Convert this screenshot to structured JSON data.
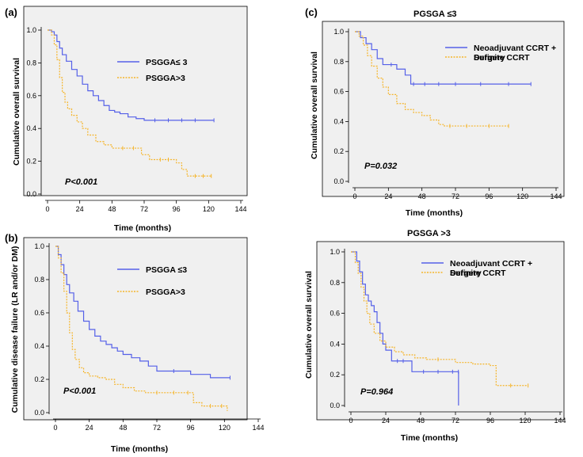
{
  "chart_data": [
    {
      "type": "line",
      "panel_label": "(a)",
      "title": "",
      "xlabel": "Time (months)",
      "ylabel": "Cumulative overall survival",
      "xlim": [
        0,
        144
      ],
      "ylim": [
        0,
        1
      ],
      "xticks": [
        "0",
        "24",
        "48",
        "72",
        "96",
        "120",
        "144"
      ],
      "yticks": [
        "0.0",
        "0.2",
        "0.4",
        "0.6",
        "0.8",
        "1.0"
      ],
      "annotation": "P<0.001",
      "legend_position": "top-right",
      "series": [
        {
          "name": "PSGGA≤ 3",
          "color": "#5560e8",
          "x": [
            0,
            3,
            5,
            7,
            9,
            11,
            14,
            18,
            22,
            26,
            30,
            34,
            38,
            42,
            46,
            50,
            54,
            60,
            66,
            72,
            80,
            90,
            100,
            110,
            124
          ],
          "y": [
            1.0,
            0.99,
            0.97,
            0.93,
            0.89,
            0.85,
            0.81,
            0.76,
            0.72,
            0.67,
            0.63,
            0.6,
            0.57,
            0.54,
            0.51,
            0.5,
            0.49,
            0.47,
            0.46,
            0.45,
            0.45,
            0.45,
            0.45,
            0.45,
            0.45
          ]
        },
        {
          "name": "PSGGA>3",
          "color": "#f5b52b",
          "x": [
            0,
            3,
            5,
            7,
            9,
            11,
            13,
            15,
            18,
            22,
            26,
            30,
            36,
            42,
            48,
            56,
            64,
            70,
            76,
            84,
            90,
            96,
            100,
            104,
            110,
            116,
            122
          ],
          "y": [
            1.0,
            0.97,
            0.91,
            0.82,
            0.71,
            0.62,
            0.56,
            0.52,
            0.48,
            0.44,
            0.4,
            0.36,
            0.32,
            0.3,
            0.28,
            0.28,
            0.28,
            0.24,
            0.21,
            0.21,
            0.21,
            0.19,
            0.15,
            0.11,
            0.11,
            0.11,
            0.11
          ]
        }
      ]
    },
    {
      "type": "line",
      "panel_label": "(b)",
      "title": "",
      "xlabel": "Time (months)",
      "ylabel": "Cumulative disease failure (LR and/or DM)",
      "xlim": [
        0,
        144
      ],
      "ylim": [
        0,
        1
      ],
      "xticks": [
        "0",
        "24",
        "48",
        "72",
        "96",
        "120",
        "144"
      ],
      "yticks": [
        "0.0",
        "0.2",
        "0.4",
        "0.6",
        "0.8",
        "1.0"
      ],
      "annotation": "P<0.001",
      "legend_position": "top-right",
      "series": [
        {
          "name": "PSGGA ≤3",
          "color": "#5560e8",
          "x": [
            0,
            2,
            4,
            6,
            8,
            10,
            13,
            16,
            20,
            24,
            28,
            32,
            36,
            40,
            44,
            48,
            54,
            60,
            66,
            72,
            84,
            96,
            110,
            124
          ],
          "y": [
            1.0,
            0.95,
            0.89,
            0.83,
            0.77,
            0.72,
            0.67,
            0.61,
            0.55,
            0.5,
            0.46,
            0.43,
            0.41,
            0.39,
            0.37,
            0.35,
            0.33,
            0.31,
            0.28,
            0.25,
            0.25,
            0.23,
            0.21,
            0.21
          ]
        },
        {
          "name": "PSGGA>3",
          "color": "#f5b52b",
          "x": [
            0,
            2,
            4,
            6,
            8,
            10,
            12,
            14,
            17,
            20,
            24,
            30,
            36,
            42,
            48,
            56,
            64,
            72,
            84,
            94,
            98,
            104,
            110,
            118,
            122
          ],
          "y": [
            1.0,
            0.93,
            0.84,
            0.73,
            0.6,
            0.48,
            0.38,
            0.32,
            0.27,
            0.24,
            0.22,
            0.21,
            0.2,
            0.17,
            0.15,
            0.13,
            0.12,
            0.12,
            0.12,
            0.12,
            0.06,
            0.04,
            0.04,
            0.04,
            0.01
          ]
        }
      ]
    },
    {
      "type": "line",
      "panel_label": "(c)",
      "title": "PGSGA ≤3",
      "xlabel": "Time (months)",
      "ylabel": "Cumulative overall survival",
      "xlim": [
        0,
        144
      ],
      "ylim": [
        0,
        1
      ],
      "xticks": [
        "0",
        "24",
        "48",
        "72",
        "96",
        "120",
        "144"
      ],
      "yticks": [
        "0.0",
        "0.2",
        "0.4",
        "0.6",
        "0.8",
        "1.0"
      ],
      "annotation": "P=0.032",
      "legend_position": "top-right",
      "series": [
        {
          "name": "Neoadjuvant CCRT + Surgery",
          "color": "#5560e8",
          "x": [
            0,
            4,
            8,
            12,
            16,
            20,
            26,
            30,
            36,
            40,
            42,
            50,
            60,
            72,
            90,
            110,
            126
          ],
          "y": [
            1.0,
            0.96,
            0.92,
            0.88,
            0.82,
            0.78,
            0.78,
            0.75,
            0.71,
            0.65,
            0.65,
            0.65,
            0.65,
            0.65,
            0.65,
            0.65,
            0.65
          ]
        },
        {
          "name": "Definite CCRT",
          "color": "#f5b52b",
          "x": [
            0,
            3,
            6,
            9,
            12,
            16,
            20,
            24,
            30,
            36,
            42,
            48,
            54,
            60,
            64,
            68,
            80,
            96,
            110
          ],
          "y": [
            1.0,
            0.97,
            0.91,
            0.84,
            0.77,
            0.69,
            0.63,
            0.58,
            0.52,
            0.48,
            0.46,
            0.44,
            0.41,
            0.38,
            0.37,
            0.37,
            0.37,
            0.37,
            0.37
          ]
        }
      ]
    },
    {
      "type": "line",
      "panel_label": "",
      "title": "PGSGA >3",
      "xlabel": "Time (months)",
      "ylabel": "Cumulative overall survival",
      "xlim": [
        0,
        144
      ],
      "ylim": [
        0,
        1
      ],
      "xticks": [
        "0",
        "24",
        "48",
        "72",
        "96",
        "120",
        "144"
      ],
      "yticks": [
        "0.0",
        "0.2",
        "0.4",
        "0.6",
        "0.8",
        "1.0"
      ],
      "annotation": "P=0.964",
      "legend_position": "top-right",
      "series": [
        {
          "name": "Neoadjuvant CCRT + Surgery",
          "color": "#5560e8",
          "x": [
            0,
            4,
            6,
            8,
            10,
            12,
            14,
            16,
            18,
            20,
            22,
            24,
            28,
            32,
            36,
            42,
            50,
            60,
            70,
            74,
            74.1
          ],
          "y": [
            1.0,
            0.94,
            0.87,
            0.79,
            0.72,
            0.68,
            0.65,
            0.61,
            0.54,
            0.47,
            0.4,
            0.36,
            0.29,
            0.29,
            0.29,
            0.22,
            0.22,
            0.22,
            0.22,
            0.22,
            0.0
          ]
        },
        {
          "name": "Definite CCRT",
          "color": "#f5b52b",
          "x": [
            0,
            3,
            5,
            7,
            9,
            11,
            13,
            16,
            20,
            24,
            30,
            36,
            44,
            52,
            60,
            72,
            84,
            96,
            100,
            110,
            122
          ],
          "y": [
            1.0,
            0.93,
            0.86,
            0.77,
            0.68,
            0.6,
            0.53,
            0.47,
            0.42,
            0.38,
            0.35,
            0.33,
            0.31,
            0.3,
            0.3,
            0.28,
            0.27,
            0.26,
            0.13,
            0.13,
            0.13
          ]
        }
      ]
    }
  ]
}
